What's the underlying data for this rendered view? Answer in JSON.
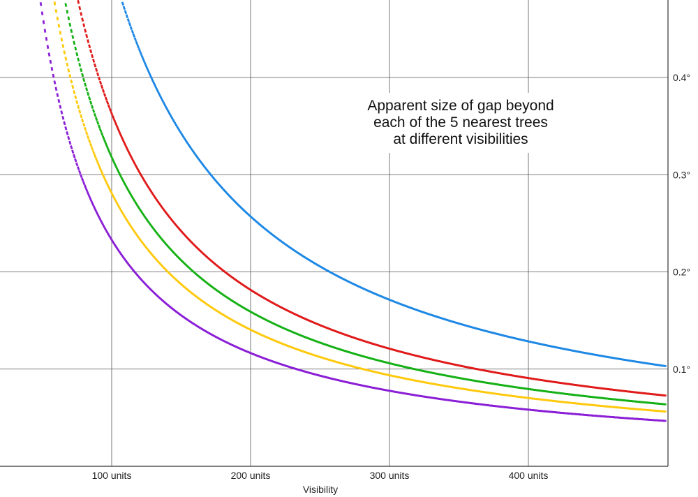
{
  "chart_data": {
    "type": "line",
    "title_lines": [
      "Apparent size of gap beyond",
      "each of the 5 nearest trees",
      "at different visibilities"
    ],
    "xlabel": "Visibility",
    "ylabel": "",
    "xlim": [
      20,
      500
    ],
    "ylim": [
      0,
      0.48
    ],
    "x_ticks": [
      {
        "value": 100,
        "label": "100 units"
      },
      {
        "value": 200,
        "label": "200 units"
      },
      {
        "value": 300,
        "label": "300 units"
      },
      {
        "value": 400,
        "label": "400 units"
      }
    ],
    "y_ticks": [
      {
        "value": 0.1,
        "label": "0.1°"
      },
      {
        "value": 0.2,
        "label": "0.2°"
      },
      {
        "value": 0.3,
        "label": "0.3°"
      },
      {
        "value": 0.4,
        "label": "0.4°"
      }
    ],
    "y_axis_position": "right",
    "grid": true,
    "legend": "none",
    "series": [
      {
        "color": "#1e88e5",
        "constant": 51.4,
        "x_start": 88,
        "x_end": 498
      },
      {
        "color": "#e01b1b",
        "constant": 36.3,
        "x_start": 58,
        "x_end": 498
      },
      {
        "color": "#16b116",
        "constant": 31.8,
        "x_start": 50,
        "x_end": 498
      },
      {
        "color": "#ffc90e",
        "constant": 28.1,
        "x_start": 42,
        "x_end": 498
      },
      {
        "color": "#8b1fd6",
        "constant": 23.3,
        "x_start": 32,
        "x_end": 498
      }
    ]
  }
}
